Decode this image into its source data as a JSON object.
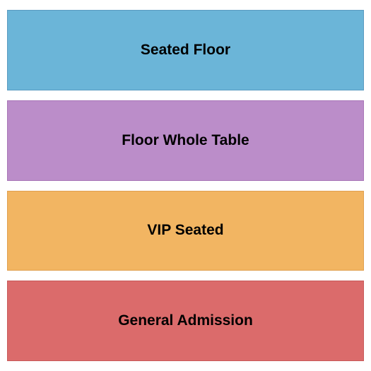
{
  "seating_chart": {
    "type": "infographic",
    "background_color": "#ffffff",
    "sections": [
      {
        "label": "Seated Floor",
        "fill_color": "#6bb5d8",
        "border_color": "#5a9bc0"
      },
      {
        "label": "Floor Whole Table",
        "fill_color": "#bb8dc9",
        "border_color": "#a876b7"
      },
      {
        "label": "VIP Seated",
        "fill_color": "#f2b562",
        "border_color": "#e0a050"
      },
      {
        "label": "General Admission",
        "fill_color": "#db6b6b",
        "border_color": "#c85a5a"
      }
    ],
    "label_fontsize": 21,
    "label_fontweight": "bold",
    "label_color": "#000000",
    "gap": 14,
    "padding": "14px 10px"
  }
}
